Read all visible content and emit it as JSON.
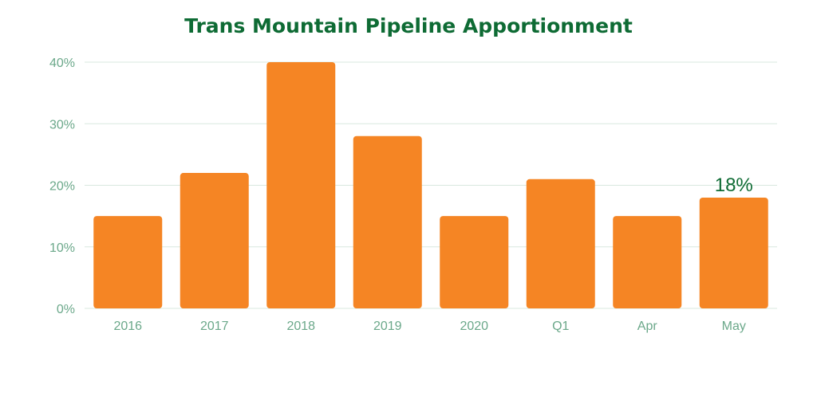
{
  "chart_data": {
    "type": "bar",
    "title": "Trans Mountain Pipeline Apportionment",
    "categories": [
      "2016",
      "2017",
      "2018",
      "2019",
      "2020",
      "Q1",
      "Apr",
      "May"
    ],
    "values": [
      15,
      22,
      40,
      28,
      15,
      21,
      15,
      18
    ],
    "unit": "%",
    "ylim": [
      0,
      40
    ],
    "yticks": [
      "0%",
      "10%",
      "20%",
      "30%",
      "40%"
    ],
    "ytick_values": [
      0,
      10,
      20,
      30,
      40
    ],
    "data_labels": [
      {
        "category": "May",
        "text": "18%"
      }
    ],
    "grid": true,
    "legend": "none",
    "colors": {
      "bar": "#f58524",
      "title": "#0e6b34",
      "grid": "#d8e8df",
      "tick": "#6ba88a",
      "data_label": "#0e6b34"
    }
  }
}
